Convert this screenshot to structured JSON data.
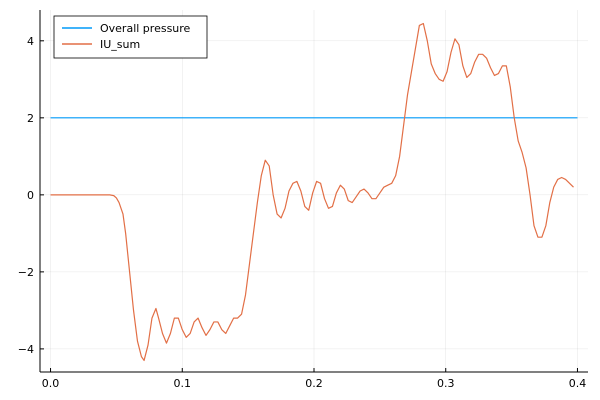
{
  "chart_data": {
    "type": "line",
    "title": "",
    "xlabel": "",
    "ylabel": "",
    "xlim": [
      -0.008,
      0.408
    ],
    "ylim": [
      -4.6,
      4.8
    ],
    "x_ticks": [
      {
        "value": 0.0,
        "label": "0.0"
      },
      {
        "value": 0.1,
        "label": "0.1"
      },
      {
        "value": 0.2,
        "label": "0.2"
      },
      {
        "value": 0.3,
        "label": "0.3"
      },
      {
        "value": 0.4,
        "label": "0.4"
      }
    ],
    "y_ticks": [
      {
        "value": -4,
        "label": "−4"
      },
      {
        "value": -2,
        "label": "−2"
      },
      {
        "value": 0,
        "label": "0"
      },
      {
        "value": 2,
        "label": "2"
      },
      {
        "value": 4,
        "label": "4"
      }
    ],
    "grid": true,
    "legend_position": "top-left",
    "series": [
      {
        "name": "Overall pressure",
        "color": "#009af9",
        "x": [
          0.0,
          0.4
        ],
        "y": [
          2.0,
          2.0
        ]
      },
      {
        "name": "IU_sum",
        "color": "#e26f46",
        "x": [
          0.0,
          0.02,
          0.04,
          0.045,
          0.048,
          0.05,
          0.052,
          0.055,
          0.057,
          0.06,
          0.063,
          0.066,
          0.069,
          0.071,
          0.074,
          0.077,
          0.08,
          0.082,
          0.085,
          0.088,
          0.091,
          0.094,
          0.097,
          0.1,
          0.103,
          0.106,
          0.109,
          0.112,
          0.115,
          0.118,
          0.121,
          0.124,
          0.127,
          0.13,
          0.133,
          0.136,
          0.139,
          0.142,
          0.145,
          0.148,
          0.151,
          0.154,
          0.157,
          0.16,
          0.163,
          0.166,
          0.169,
          0.172,
          0.175,
          0.178,
          0.181,
          0.184,
          0.187,
          0.19,
          0.193,
          0.196,
          0.199,
          0.202,
          0.205,
          0.208,
          0.211,
          0.214,
          0.217,
          0.22,
          0.223,
          0.226,
          0.229,
          0.232,
          0.235,
          0.238,
          0.241,
          0.244,
          0.247,
          0.25,
          0.253,
          0.256,
          0.259,
          0.262,
          0.265,
          0.268,
          0.271,
          0.274,
          0.277,
          0.28,
          0.283,
          0.286,
          0.289,
          0.292,
          0.295,
          0.298,
          0.301,
          0.304,
          0.307,
          0.31,
          0.313,
          0.316,
          0.319,
          0.322,
          0.325,
          0.328,
          0.331,
          0.334,
          0.337,
          0.34,
          0.343,
          0.346,
          0.349,
          0.352,
          0.355,
          0.358,
          0.361,
          0.364,
          0.367,
          0.37,
          0.373,
          0.376,
          0.379,
          0.382,
          0.385,
          0.388,
          0.391,
          0.394,
          0.397
        ],
        "y": [
          0.0,
          0.0,
          0.0,
          0.0,
          -0.02,
          -0.08,
          -0.2,
          -0.5,
          -1.0,
          -2.0,
          -3.0,
          -3.8,
          -4.2,
          -4.3,
          -3.9,
          -3.2,
          -2.95,
          -3.2,
          -3.6,
          -3.85,
          -3.6,
          -3.2,
          -3.2,
          -3.5,
          -3.7,
          -3.6,
          -3.3,
          -3.2,
          -3.45,
          -3.65,
          -3.5,
          -3.3,
          -3.3,
          -3.5,
          -3.6,
          -3.4,
          -3.2,
          -3.2,
          -3.1,
          -2.6,
          -1.8,
          -1.0,
          -0.2,
          0.5,
          0.9,
          0.75,
          0.0,
          -0.5,
          -0.6,
          -0.35,
          0.1,
          0.3,
          0.35,
          0.1,
          -0.3,
          -0.4,
          0.05,
          0.35,
          0.3,
          -0.1,
          -0.35,
          -0.3,
          0.05,
          0.25,
          0.15,
          -0.15,
          -0.2,
          -0.05,
          0.1,
          0.15,
          0.05,
          -0.1,
          -0.1,
          0.05,
          0.2,
          0.25,
          0.3,
          0.5,
          1.0,
          1.8,
          2.6,
          3.2,
          3.8,
          4.4,
          4.45,
          4.0,
          3.4,
          3.15,
          3.0,
          2.95,
          3.2,
          3.7,
          4.05,
          3.9,
          3.35,
          3.05,
          3.15,
          3.45,
          3.65,
          3.65,
          3.55,
          3.3,
          3.1,
          3.15,
          3.35,
          3.35,
          2.8,
          2.0,
          1.4,
          1.1,
          0.7,
          0.0,
          -0.8,
          -1.1,
          -1.1,
          -0.8,
          -0.2,
          0.2,
          0.4,
          0.45,
          0.4,
          0.3,
          0.2
        ]
      }
    ]
  }
}
